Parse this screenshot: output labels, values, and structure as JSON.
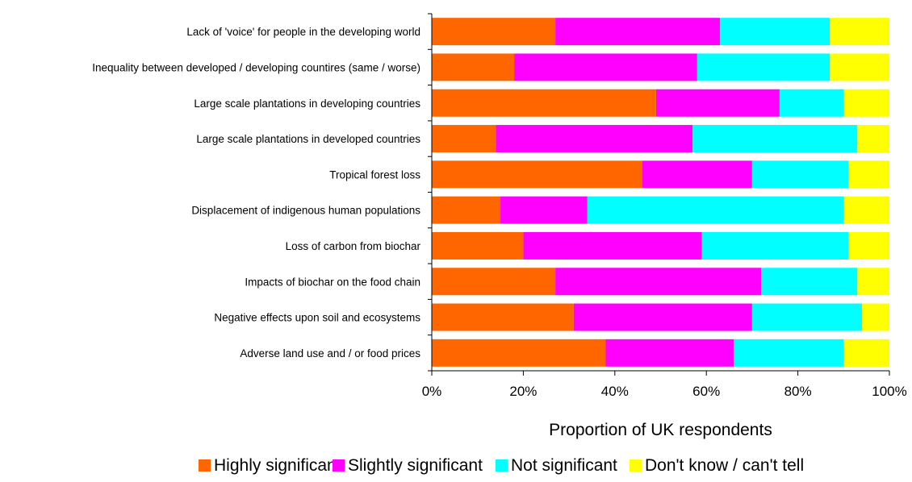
{
  "chart_data": {
    "type": "bar",
    "orientation": "horizontal",
    "stacked": true,
    "normalized_percent": true,
    "title": "",
    "xlabel": "Proportion of UK respondents",
    "ylabel": "",
    "xlim": [
      0,
      100
    ],
    "x_ticks": [
      "0%",
      "20%",
      "40%",
      "60%",
      "80%",
      "100%"
    ],
    "grid": false,
    "legend_position": "bottom",
    "categories": [
      "Lack of 'voice' for people in the developing world",
      "Inequality between developed / developing countires (same / worse)",
      "Large scale plantations in developing countries",
      "Large scale plantations in developed countries",
      "Tropical forest loss",
      "Displacement of indigenous human populations",
      "Loss of carbon from biochar",
      "Impacts of biochar on the food chain",
      "Negative effects upon soil and ecosystems",
      "Adverse land use and / or food prices"
    ],
    "series": [
      {
        "name": "Highly significant",
        "color": "#ff6600",
        "values": [
          27,
          18,
          49,
          14,
          46,
          15,
          20,
          27,
          31,
          38
        ]
      },
      {
        "name": "Slightly significant",
        "color": "#ff00ff",
        "values": [
          36,
          40,
          27,
          43,
          24,
          19,
          39,
          45,
          39,
          28
        ]
      },
      {
        "name": "Not significant",
        "color": "#00ffff",
        "values": [
          24,
          29,
          14,
          36,
          21,
          56,
          32,
          21,
          24,
          24
        ]
      },
      {
        "name": "Don't know / can't tell",
        "color": "#ffff00",
        "values": [
          13,
          13,
          10,
          7,
          9,
          10,
          9,
          7,
          6,
          10
        ]
      }
    ]
  }
}
